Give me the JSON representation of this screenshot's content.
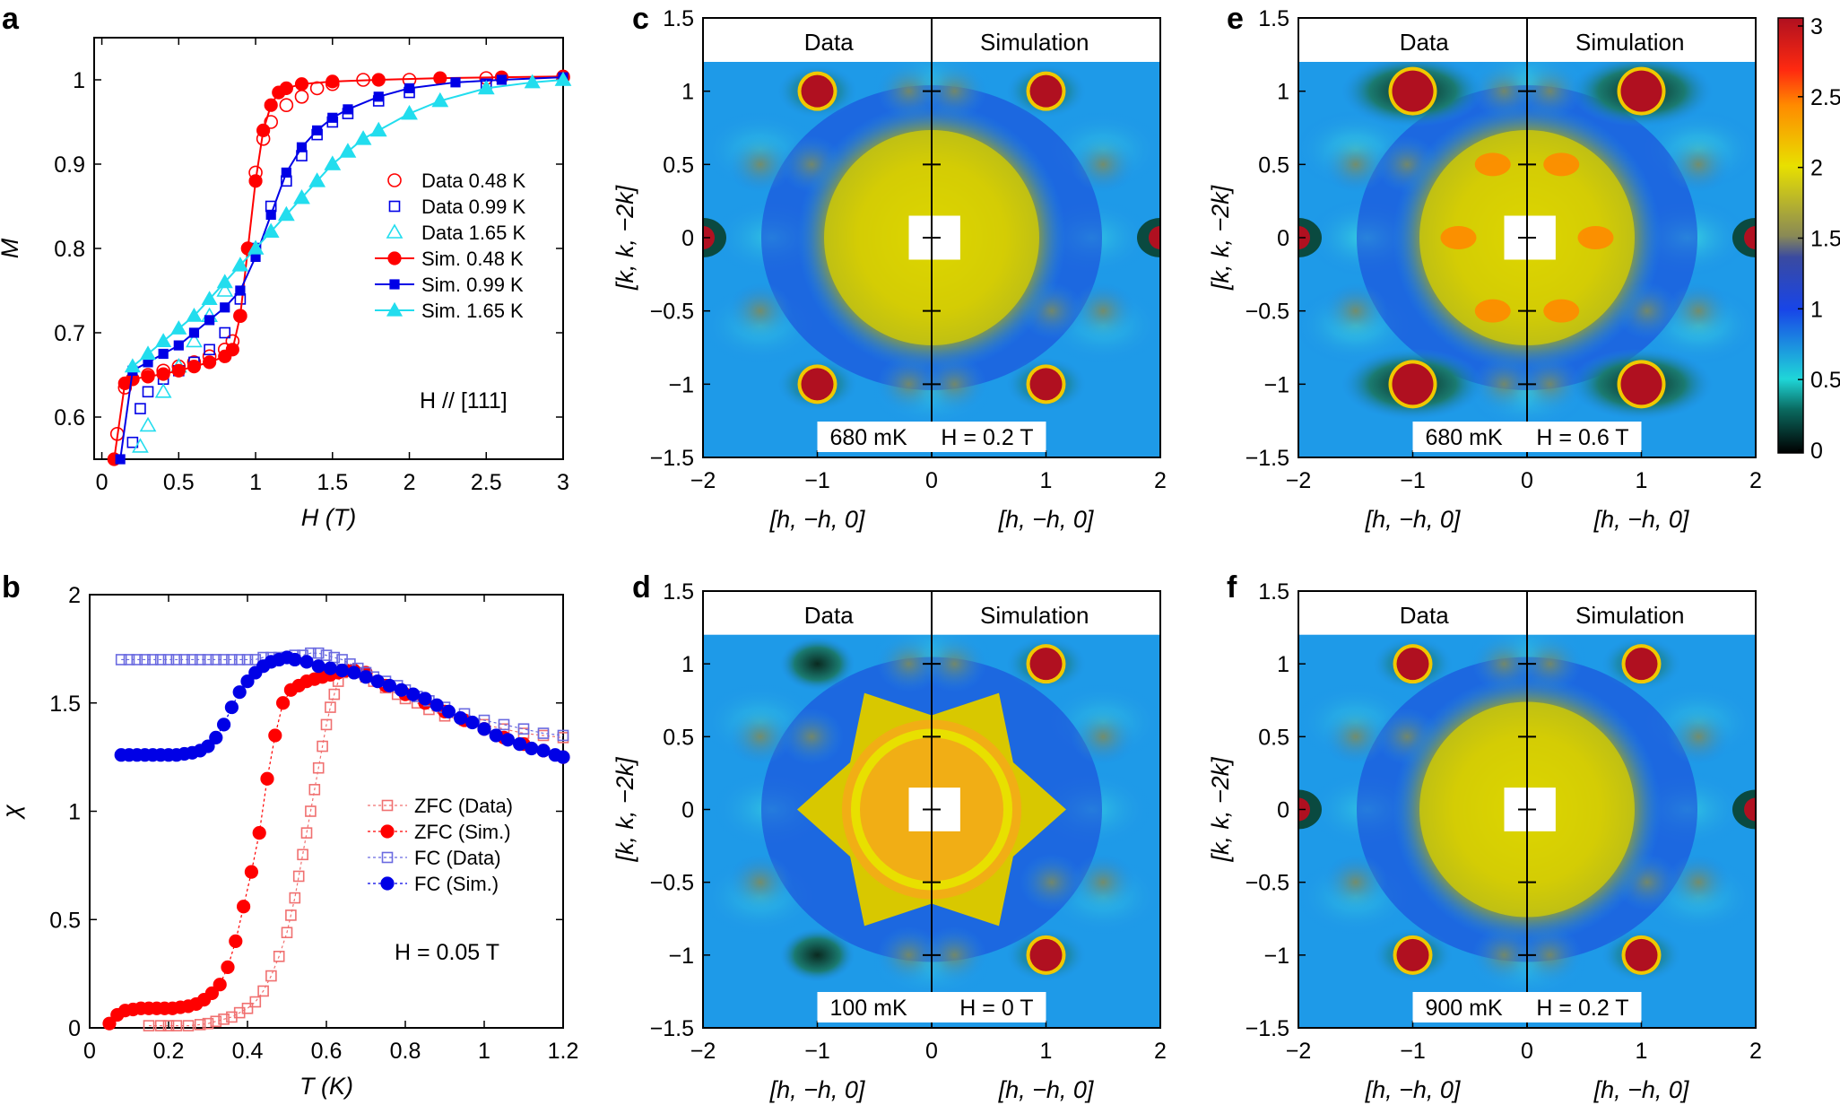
{
  "colors": {
    "red": "#ff0000",
    "blue": "#0000e6",
    "cyan": "#22ddee",
    "zfc_data": "#f07070",
    "fc_data": "#6a6ae0",
    "map_bg": "#1e9ae8",
    "header_bg": "#ffffff"
  },
  "labels": {
    "data": "Data",
    "simulation": "Simulation",
    "hkk_x": "[h, −h, 0]",
    "hkk_y": "[k, k, −2k]"
  },
  "colorbar": {
    "ticks": [
      "0",
      "0.5",
      "1",
      "1.5",
      "2",
      "2.5",
      "3"
    ],
    "colors": [
      "#000000",
      "#1fd6d8",
      "#1845e8",
      "#8a8a55",
      "#e8e000",
      "#ff8a00",
      "#b01020"
    ]
  },
  "chart_data": [
    {
      "id": "a",
      "type": "scatter",
      "letter": "a",
      "xlabel": "H (T)",
      "ylabel": "M",
      "xlim": [
        -0.05,
        3
      ],
      "ylim": [
        0.55,
        1.05
      ],
      "xticks": [
        "0",
        "0.5",
        "1",
        "1.5",
        "2",
        "2.5",
        "3"
      ],
      "xtick_vals": [
        0,
        0.5,
        1,
        1.5,
        2,
        2.5,
        3
      ],
      "yticks": [
        "0.6",
        "0.7",
        "0.8",
        "0.9",
        "1"
      ],
      "ytick_vals": [
        0.6,
        0.7,
        0.8,
        0.9,
        1.0
      ],
      "annotation": "H // [111]",
      "series": [
        {
          "name": "Data 0.48 K",
          "kind": "data",
          "marker": "circle-open",
          "color": "#ff0000",
          "x": [
            0.1,
            0.15,
            0.2,
            0.3,
            0.4,
            0.5,
            0.6,
            0.7,
            0.8,
            0.85,
            0.9,
            0.95,
            1.0,
            1.05,
            1.1,
            1.2,
            1.3,
            1.4,
            1.5,
            1.7,
            2.0,
            2.5,
            3.0
          ],
          "y": [
            0.58,
            0.635,
            0.645,
            0.65,
            0.655,
            0.66,
            0.665,
            0.672,
            0.68,
            0.69,
            0.72,
            0.8,
            0.89,
            0.93,
            0.95,
            0.97,
            0.98,
            0.99,
            0.995,
            1.0,
            1.0,
            1.002,
            1.003
          ]
        },
        {
          "name": "Data 0.99 K",
          "kind": "data",
          "marker": "square-open",
          "color": "#0000e6",
          "x": [
            0.2,
            0.25,
            0.3,
            0.4,
            0.5,
            0.6,
            0.7,
            0.8,
            0.9,
            1.0,
            1.1,
            1.2,
            1.3,
            1.4,
            1.5,
            1.6,
            1.8,
            2.0,
            2.5,
            3.0
          ],
          "y": [
            0.57,
            0.61,
            0.63,
            0.645,
            0.655,
            0.665,
            0.68,
            0.7,
            0.74,
            0.8,
            0.85,
            0.88,
            0.91,
            0.935,
            0.95,
            0.96,
            0.975,
            0.985,
            0.995,
            1.0
          ]
        },
        {
          "name": "Data 1.65 K",
          "kind": "data",
          "marker": "triangle-open",
          "color": "#22ddee",
          "x": [
            0.25,
            0.3,
            0.4,
            0.5,
            0.6,
            0.7,
            0.8,
            0.9,
            1.0,
            1.1,
            1.2,
            1.3,
            1.4,
            1.5,
            1.6,
            1.7,
            1.8,
            2.0,
            2.2,
            2.5,
            3.0
          ],
          "y": [
            0.565,
            0.59,
            0.63,
            0.66,
            0.69,
            0.72,
            0.75,
            0.78,
            0.8,
            0.82,
            0.84,
            0.86,
            0.88,
            0.9,
            0.915,
            0.93,
            0.94,
            0.96,
            0.975,
            0.99,
            1.0
          ]
        },
        {
          "name": "Sim. 0.48 K",
          "kind": "sim",
          "marker": "circle",
          "color": "#ff0000",
          "x": [
            0.08,
            0.15,
            0.2,
            0.3,
            0.4,
            0.5,
            0.6,
            0.7,
            0.8,
            0.85,
            0.9,
            0.95,
            1.0,
            1.05,
            1.1,
            1.15,
            1.2,
            1.3,
            1.5,
            1.8,
            2.2,
            2.6,
            3.0
          ],
          "y": [
            0.55,
            0.64,
            0.645,
            0.648,
            0.651,
            0.655,
            0.66,
            0.665,
            0.672,
            0.68,
            0.72,
            0.8,
            0.88,
            0.94,
            0.97,
            0.985,
            0.99,
            0.995,
            0.998,
            1.0,
            1.002,
            1.003,
            1.004
          ]
        },
        {
          "name": "Sim. 0.99 K",
          "kind": "sim",
          "marker": "square",
          "color": "#0000e6",
          "x": [
            0.12,
            0.2,
            0.3,
            0.4,
            0.5,
            0.6,
            0.7,
            0.8,
            0.9,
            1.0,
            1.1,
            1.2,
            1.3,
            1.4,
            1.5,
            1.6,
            1.8,
            2.0,
            2.3,
            2.6,
            3.0
          ],
          "y": [
            0.55,
            0.655,
            0.665,
            0.675,
            0.685,
            0.7,
            0.715,
            0.73,
            0.75,
            0.79,
            0.84,
            0.89,
            0.92,
            0.94,
            0.955,
            0.965,
            0.98,
            0.99,
            0.997,
            1.0,
            1.003
          ]
        },
        {
          "name": "Sim. 1.65 K",
          "kind": "sim",
          "marker": "triangle",
          "color": "#22ddee",
          "x": [
            0.2,
            0.3,
            0.4,
            0.5,
            0.6,
            0.7,
            0.8,
            0.9,
            1.0,
            1.1,
            1.2,
            1.3,
            1.4,
            1.5,
            1.6,
            1.7,
            1.8,
            2.0,
            2.2,
            2.5,
            2.8,
            3.0
          ],
          "y": [
            0.66,
            0.675,
            0.69,
            0.705,
            0.72,
            0.74,
            0.76,
            0.78,
            0.8,
            0.82,
            0.84,
            0.86,
            0.88,
            0.9,
            0.915,
            0.93,
            0.94,
            0.96,
            0.975,
            0.99,
            0.997,
            1.0
          ]
        }
      ]
    },
    {
      "id": "b",
      "type": "scatter",
      "letter": "b",
      "xlabel": "T (K)",
      "ylabel": "χ",
      "xlim": [
        0,
        1.2
      ],
      "ylim": [
        0,
        2
      ],
      "xticks": [
        "0",
        "0.2",
        "0.4",
        "0.6",
        "0.8",
        "1",
        "1.2"
      ],
      "xtick_vals": [
        0,
        0.2,
        0.4,
        0.6,
        0.8,
        1.0,
        1.2
      ],
      "yticks": [
        "0",
        "0.5",
        "1",
        "1.5",
        "2"
      ],
      "ytick_vals": [
        0,
        0.5,
        1.0,
        1.5,
        2.0
      ],
      "annotation": "H = 0.05 T",
      "series": [
        {
          "name": "ZFC (Data)",
          "marker": "square-open",
          "color": "#f07070",
          "x": [
            0.15,
            0.18,
            0.2,
            0.22,
            0.25,
            0.28,
            0.3,
            0.32,
            0.34,
            0.36,
            0.38,
            0.4,
            0.42,
            0.44,
            0.46,
            0.48,
            0.5,
            0.51,
            0.52,
            0.53,
            0.54,
            0.55,
            0.56,
            0.57,
            0.58,
            0.59,
            0.6,
            0.61,
            0.62,
            0.63,
            0.64,
            0.66,
            0.68,
            0.7,
            0.72,
            0.75,
            0.78,
            0.8,
            0.83,
            0.86,
            0.9,
            0.95,
            1.0,
            1.05,
            1.1,
            1.15,
            1.2
          ],
          "y": [
            0.01,
            0.01,
            0.01,
            0.01,
            0.01,
            0.015,
            0.02,
            0.03,
            0.04,
            0.05,
            0.07,
            0.09,
            0.12,
            0.17,
            0.24,
            0.33,
            0.44,
            0.52,
            0.6,
            0.7,
            0.8,
            0.9,
            1.0,
            1.1,
            1.2,
            1.3,
            1.4,
            1.48,
            1.54,
            1.6,
            1.64,
            1.65,
            1.64,
            1.62,
            1.6,
            1.57,
            1.54,
            1.52,
            1.5,
            1.47,
            1.44,
            1.42,
            1.4,
            1.38,
            1.36,
            1.35,
            1.34
          ]
        },
        {
          "name": "ZFC (Sim.)",
          "marker": "circle",
          "color": "#ff0000",
          "x": [
            0.05,
            0.07,
            0.09,
            0.11,
            0.13,
            0.15,
            0.17,
            0.19,
            0.21,
            0.23,
            0.25,
            0.27,
            0.29,
            0.31,
            0.33,
            0.35,
            0.37,
            0.39,
            0.41,
            0.43,
            0.45,
            0.47,
            0.49,
            0.51,
            0.53,
            0.55,
            0.57,
            0.59,
            0.61,
            0.63,
            0.65,
            0.67,
            0.7,
            0.75,
            0.8,
            0.85,
            0.9,
            0.95,
            1.0,
            1.05,
            1.1,
            1.15,
            1.2
          ],
          "y": [
            0.02,
            0.06,
            0.08,
            0.085,
            0.09,
            0.09,
            0.09,
            0.09,
            0.09,
            0.095,
            0.1,
            0.11,
            0.13,
            0.16,
            0.2,
            0.28,
            0.4,
            0.56,
            0.72,
            0.9,
            1.15,
            1.35,
            1.5,
            1.56,
            1.58,
            1.6,
            1.61,
            1.62,
            1.63,
            1.64,
            1.65,
            1.65,
            1.64,
            1.58,
            1.54,
            1.5,
            1.46,
            1.42,
            1.38,
            1.34,
            1.31,
            1.28,
            1.25
          ]
        },
        {
          "name": "FC (Data)",
          "marker": "square-open",
          "color": "#6a6ae0",
          "x": [
            0.08,
            0.1,
            0.12,
            0.14,
            0.16,
            0.18,
            0.2,
            0.22,
            0.24,
            0.26,
            0.28,
            0.3,
            0.32,
            0.34,
            0.36,
            0.38,
            0.4,
            0.42,
            0.44,
            0.46,
            0.48,
            0.5,
            0.52,
            0.54,
            0.56,
            0.58,
            0.6,
            0.62,
            0.64,
            0.66,
            0.68,
            0.7,
            0.72,
            0.75,
            0.78,
            0.8,
            0.83,
            0.86,
            0.9,
            0.95,
            1.0,
            1.05,
            1.1,
            1.15,
            1.2
          ],
          "y": [
            1.7,
            1.7,
            1.7,
            1.7,
            1.7,
            1.7,
            1.7,
            1.7,
            1.7,
            1.7,
            1.7,
            1.7,
            1.7,
            1.7,
            1.7,
            1.7,
            1.7,
            1.7,
            1.71,
            1.71,
            1.71,
            1.71,
            1.72,
            1.72,
            1.73,
            1.73,
            1.72,
            1.71,
            1.7,
            1.68,
            1.66,
            1.64,
            1.62,
            1.6,
            1.58,
            1.56,
            1.53,
            1.51,
            1.48,
            1.45,
            1.42,
            1.4,
            1.38,
            1.36,
            1.35
          ]
        },
        {
          "name": "FC (Sim.)",
          "marker": "circle",
          "color": "#0000e6",
          "x": [
            0.08,
            0.1,
            0.12,
            0.14,
            0.16,
            0.18,
            0.2,
            0.22,
            0.24,
            0.26,
            0.28,
            0.3,
            0.32,
            0.34,
            0.36,
            0.38,
            0.4,
            0.42,
            0.44,
            0.46,
            0.48,
            0.5,
            0.52,
            0.55,
            0.58,
            0.61,
            0.64,
            0.67,
            0.7,
            0.73,
            0.76,
            0.79,
            0.82,
            0.85,
            0.88,
            0.91,
            0.94,
            0.97,
            1.0,
            1.03,
            1.06,
            1.09,
            1.12,
            1.15,
            1.18,
            1.2
          ],
          "y": [
            1.26,
            1.26,
            1.26,
            1.26,
            1.26,
            1.26,
            1.26,
            1.26,
            1.265,
            1.27,
            1.28,
            1.3,
            1.34,
            1.4,
            1.48,
            1.55,
            1.6,
            1.64,
            1.67,
            1.69,
            1.7,
            1.71,
            1.7,
            1.69,
            1.67,
            1.66,
            1.65,
            1.64,
            1.62,
            1.6,
            1.58,
            1.56,
            1.54,
            1.52,
            1.49,
            1.46,
            1.43,
            1.41,
            1.38,
            1.35,
            1.33,
            1.31,
            1.29,
            1.28,
            1.26,
            1.25
          ]
        }
      ]
    },
    {
      "id": "c",
      "type": "heatmap",
      "letter": "c",
      "xlim": [
        -2,
        2
      ],
      "ylim": [
        -1.5,
        1.5
      ],
      "xticks": [
        "−2",
        "−1",
        "0",
        "1",
        "2"
      ],
      "yticks": [
        "1.5",
        "1",
        "0.5",
        "0",
        "−0.5",
        "−1",
        "−1.5"
      ],
      "temperature": "680 mK",
      "field": "H = 0.2 T",
      "ylabel_shown": true,
      "variant": "ring"
    },
    {
      "id": "d",
      "type": "heatmap",
      "letter": "d",
      "xlim": [
        -2,
        2
      ],
      "ylim": [
        -1.5,
        1.5
      ],
      "xticks": [
        "−2",
        "−1",
        "0",
        "1",
        "2"
      ],
      "yticks": [
        "1.5",
        "1",
        "0.5",
        "0",
        "−0.5",
        "−1",
        "−1.5"
      ],
      "temperature": "100 mK",
      "field": "H = 0 T",
      "ylabel_shown": true,
      "variant": "star"
    },
    {
      "id": "e",
      "type": "heatmap",
      "letter": "e",
      "xlim": [
        -2,
        2
      ],
      "ylim": [
        -1.5,
        1.5
      ],
      "xticks": [
        "−2",
        "−1",
        "0",
        "1",
        "2"
      ],
      "yticks": [
        "1.5",
        "1",
        "0.5",
        "0",
        "−0.5",
        "−1",
        "−1.5"
      ],
      "temperature": "680 mK",
      "field": "H = 0.6 T",
      "ylabel_shown": true,
      "variant": "strong"
    },
    {
      "id": "f",
      "type": "heatmap",
      "letter": "f",
      "xlim": [
        -2,
        2
      ],
      "ylim": [
        -1.5,
        1.5
      ],
      "xticks": [
        "−2",
        "−1",
        "0",
        "1",
        "2"
      ],
      "yticks": [
        "1.5",
        "1",
        "0.5",
        "0",
        "−0.5",
        "−1",
        "−1.5"
      ],
      "temperature": "900 mK",
      "field": "H = 0.2 T",
      "ylabel_shown": true,
      "variant": "ring"
    }
  ]
}
